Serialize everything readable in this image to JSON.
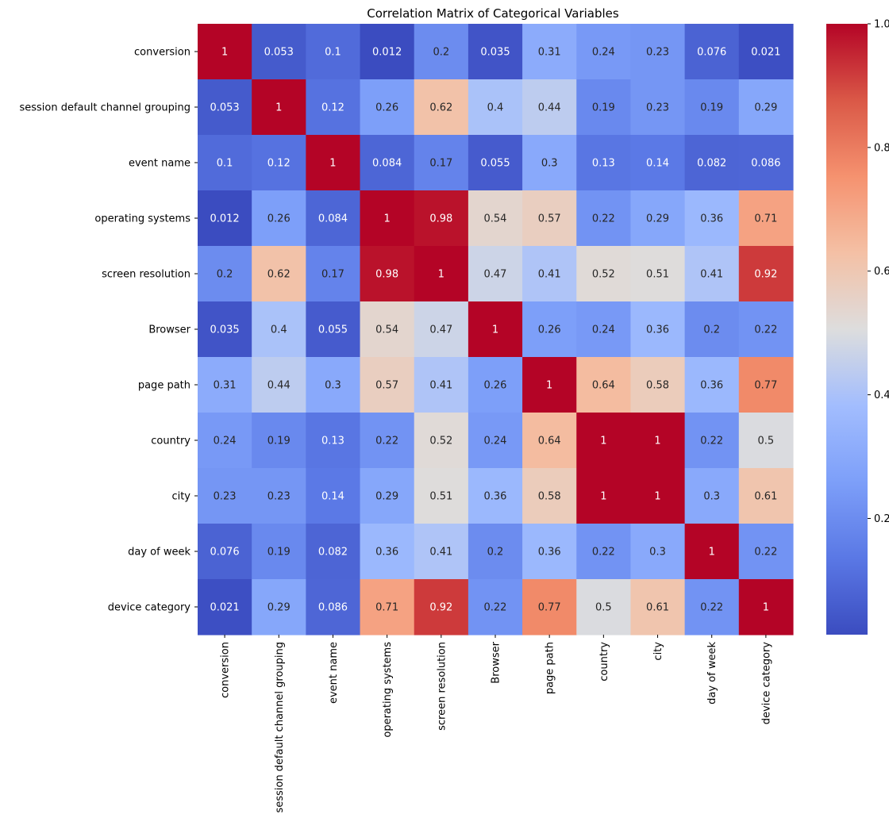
{
  "chart_data": {
    "type": "heatmap",
    "title": "Correlation Matrix of Categorical Variables",
    "xlabel": "",
    "ylabel": "",
    "colormap": "coolwarm",
    "labels": [
      "conversion",
      "session default channel grouping",
      "event name",
      "operating systems",
      "screen resolution",
      "Browser",
      "page path",
      "country",
      "city",
      "day of week",
      "device category"
    ],
    "matrix": [
      [
        "1",
        "0.053",
        "0.1",
        "0.012",
        "0.2",
        "0.035",
        "0.31",
        "0.24",
        "0.23",
        "0.076",
        "0.021"
      ],
      [
        "0.053",
        "1",
        "0.12",
        "0.26",
        "0.62",
        "0.4",
        "0.44",
        "0.19",
        "0.23",
        "0.19",
        "0.29"
      ],
      [
        "0.1",
        "0.12",
        "1",
        "0.084",
        "0.17",
        "0.055",
        "0.3",
        "0.13",
        "0.14",
        "0.082",
        "0.086"
      ],
      [
        "0.012",
        "0.26",
        "0.084",
        "1",
        "0.98",
        "0.54",
        "0.57",
        "0.22",
        "0.29",
        "0.36",
        "0.71"
      ],
      [
        "0.2",
        "0.62",
        "0.17",
        "0.98",
        "1",
        "0.47",
        "0.41",
        "0.52",
        "0.51",
        "0.41",
        "0.92"
      ],
      [
        "0.035",
        "0.4",
        "0.055",
        "0.54",
        "0.47",
        "1",
        "0.26",
        "0.24",
        "0.36",
        "0.2",
        "0.22"
      ],
      [
        "0.31",
        "0.44",
        "0.3",
        "0.57",
        "0.41",
        "0.26",
        "1",
        "0.64",
        "0.58",
        "0.36",
        "0.77"
      ],
      [
        "0.24",
        "0.19",
        "0.13",
        "0.22",
        "0.52",
        "0.24",
        "0.64",
        "1",
        "1",
        "0.22",
        "0.5"
      ],
      [
        "0.23",
        "0.23",
        "0.14",
        "0.29",
        "0.51",
        "0.36",
        "0.58",
        "1",
        "1",
        "0.3",
        "0.61"
      ],
      [
        "0.076",
        "0.19",
        "0.082",
        "0.36",
        "0.41",
        "0.2",
        "0.36",
        "0.22",
        "0.3",
        "1",
        "0.22"
      ],
      [
        "0.021",
        "0.29",
        "0.086",
        "0.71",
        "0.92",
        "0.22",
        "0.77",
        "0.5",
        "0.61",
        "0.22",
        "1"
      ]
    ],
    "colorbar": {
      "range": [
        0.012,
        1.0
      ],
      "ticks": [
        "0.2",
        "0.4",
        "0.6",
        "0.8",
        "1.0"
      ]
    },
    "annotation_colors": {
      "light": "#ffffff",
      "dark": "#262626"
    }
  }
}
